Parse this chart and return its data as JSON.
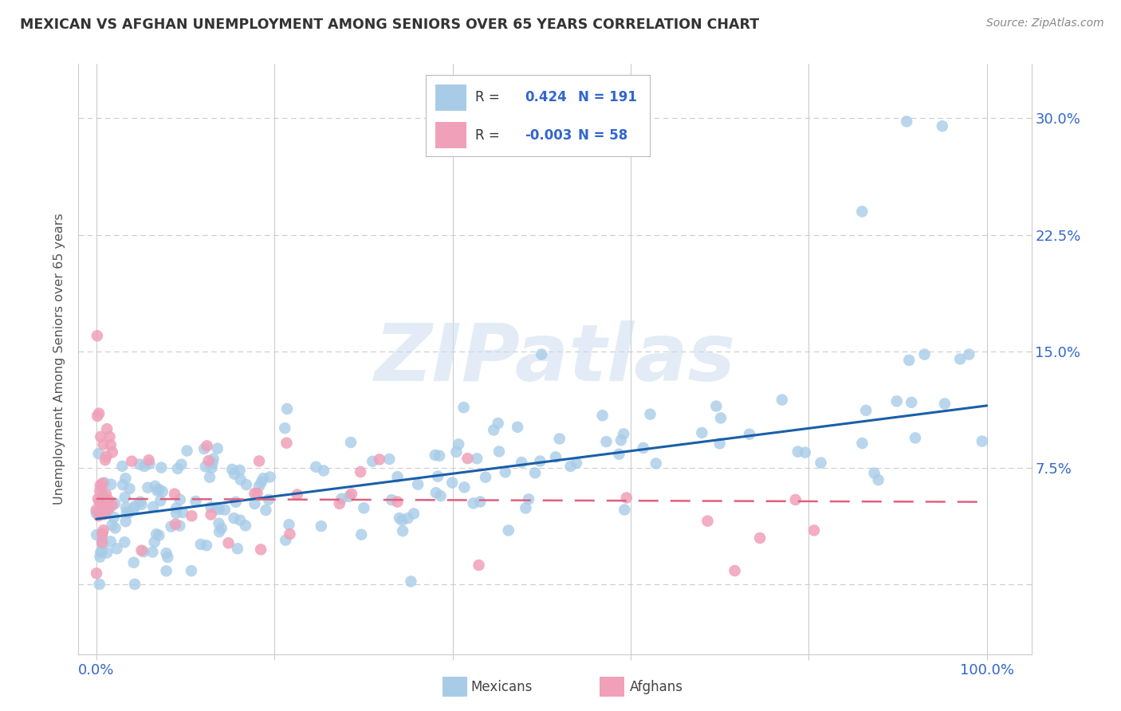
{
  "title": "MEXICAN VS AFGHAN UNEMPLOYMENT AMONG SENIORS OVER 65 YEARS CORRELATION CHART",
  "source": "Source: ZipAtlas.com",
  "ylabel": "Unemployment Among Seniors over 65 years",
  "watermark": "ZIPatlas",
  "legend_mexican_r": "0.424",
  "legend_mexican_n": "191",
  "legend_afghan_r": "-0.003",
  "legend_afghan_n": "58",
  "mexican_color": "#a8cce8",
  "afghan_color": "#f0a0b8",
  "mexican_line_color": "#1a5fa8",
  "afghan_line_color": "#e06080",
  "background_color": "#ffffff",
  "ytick_vals": [
    0.0,
    0.075,
    0.15,
    0.225,
    0.3
  ],
  "ytick_labels": [
    "",
    "7.5%",
    "15.0%",
    "22.5%",
    "30.0%"
  ],
  "xlim": [
    -0.02,
    1.05
  ],
  "ylim": [
    -0.045,
    0.335
  ],
  "mexican_trend_y0": 0.042,
  "mexican_trend_y1": 0.115,
  "afghan_trend_y0": 0.055,
  "afghan_trend_y1": 0.053,
  "grid_color": "#cccccc",
  "tick_label_color": "#3366cc",
  "title_color": "#333333",
  "ylabel_color": "#555555",
  "source_color": "#888888"
}
